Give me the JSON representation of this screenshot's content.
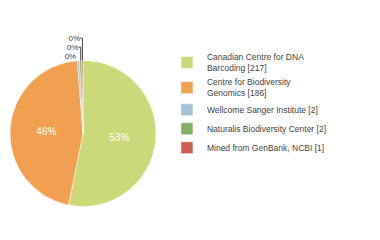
{
  "chart_data": {
    "type": "pie",
    "categories": [
      "Canadian Centre for DNA\nBarcoding [217]",
      "Centre for Biodiversity\nGenomics [186]",
      "Wellcome Sanger Institute [2]",
      "Naturalis Biodiversity Center [2]",
      "Mined from GenBank, NCBI [1]"
    ],
    "values": [
      53.19,
      45.59,
      0.49,
      0.49,
      0.25
    ],
    "value_labels": [
      "53%",
      "46%",
      "0%",
      "0%",
      "0%"
    ],
    "colors": [
      "#ccd97a",
      "#f0a050",
      "#a8c0d8",
      "#80b060",
      "#cc6050"
    ],
    "data_labels": true,
    "legend": "upper right"
  }
}
